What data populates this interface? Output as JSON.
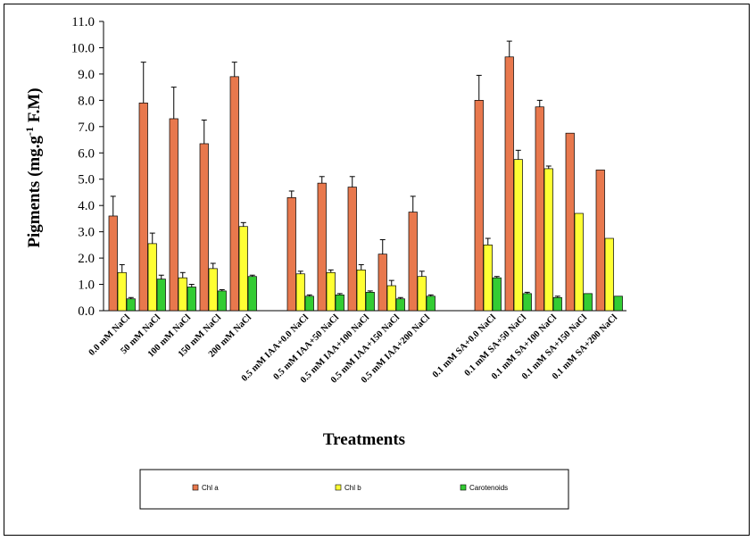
{
  "chart_data": {
    "type": "bar",
    "xlabel": "Treatments",
    "ylabel": "Pigments (mg.g-1 F.M)",
    "ylim": [
      0,
      11
    ],
    "yticks": [
      "0.0",
      "1.0",
      "2.0",
      "3.0",
      "4.0",
      "5.0",
      "6.0",
      "7.0",
      "8.0",
      "9.0",
      "10.0",
      "11.0"
    ],
    "groups": [
      {
        "categories": [
          "0.0 mM NaCl",
          "50 mM NaCl",
          "100 mM NaCl",
          "150 mM NaCl",
          "200 mM NaCl"
        ]
      },
      {
        "categories": [
          "0.5 mM IAA+0.0 NaCl",
          "0.5 mM IAA+50 NaCl",
          "0.5 mM IAA+100 NaCl",
          "0.5 mM IAA+150 NaCl",
          "0.5 mM IAA+200 NaCl"
        ]
      },
      {
        "categories": [
          "0.1 mM SA+0.0 NaCl",
          "0.1 mM SA+50 NaCl",
          "0.1 mM SA+100 NaCl",
          "0.1 mM SA+150 NaCl",
          "0.1 mM SA+200 NaCl"
        ]
      }
    ],
    "series": [
      {
        "name": "Chl a",
        "color": "#e8784d",
        "values": [
          3.6,
          7.9,
          7.3,
          6.35,
          8.9,
          4.3,
          4.85,
          4.7,
          2.15,
          3.75,
          8.0,
          9.65,
          7.75,
          6.75,
          5.35
        ],
        "errors": [
          0.75,
          1.55,
          1.2,
          0.9,
          0.55,
          0.25,
          0.25,
          0.4,
          0.55,
          0.6,
          0.95,
          0.6,
          0.25,
          0,
          0
        ]
      },
      {
        "name": "Chl b",
        "color": "#ffff33",
        "values": [
          1.45,
          2.55,
          1.25,
          1.6,
          3.2,
          1.4,
          1.45,
          1.55,
          0.95,
          1.3,
          2.5,
          5.75,
          5.4,
          3.7,
          2.75
        ],
        "errors": [
          0.3,
          0.4,
          0.2,
          0.2,
          0.15,
          0.1,
          0.1,
          0.2,
          0.2,
          0.2,
          0.25,
          0.35,
          0.1,
          0,
          0
        ]
      },
      {
        "name": "Carotenoids",
        "color": "#33cc33",
        "values": [
          0.45,
          1.2,
          0.9,
          0.75,
          1.3,
          0.55,
          0.6,
          0.7,
          0.45,
          0.55,
          1.25,
          0.65,
          0.5,
          0.65,
          0.55
        ],
        "errors": [
          0.05,
          0.15,
          0.1,
          0.05,
          0.05,
          0.05,
          0.05,
          0.05,
          0.05,
          0.05,
          0.05,
          0.05,
          0.05,
          0,
          0
        ]
      }
    ],
    "legend": {
      "position": "bottom",
      "labels": [
        "Chl a",
        "Chl b",
        "Carotenoids"
      ]
    }
  }
}
